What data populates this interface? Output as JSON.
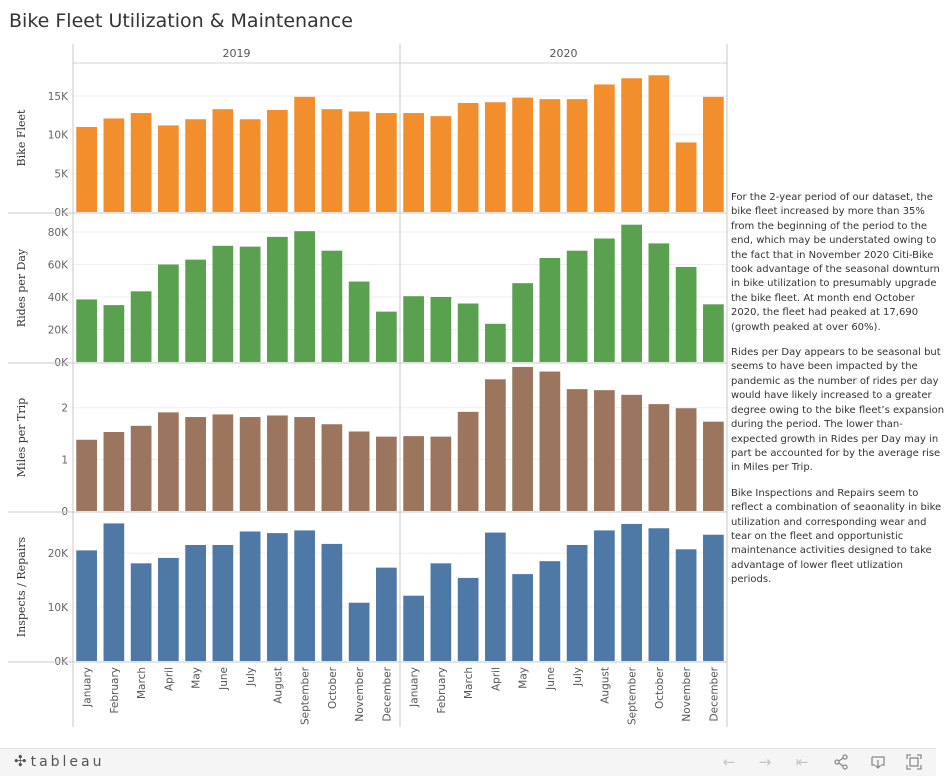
{
  "title": "Bike Fleet Utilization & Maintenance",
  "colors": {
    "fleet": "#f28e2b",
    "rides": "#59a14f",
    "miles": "#9c755f",
    "inspects": "#4e79a7"
  },
  "chart_data": {
    "type": "bar",
    "years": [
      "2019",
      "2020"
    ],
    "months": {
      "2019": [
        "January",
        "February",
        "March",
        "April",
        "May",
        "June",
        "July",
        "August",
        "September",
        "October",
        "November",
        "December"
      ],
      "2020": [
        "January",
        "February",
        "March",
        "April",
        "May",
        "June",
        "July",
        "August",
        "September",
        "October",
        "November",
        "December"
      ]
    },
    "panels": [
      {
        "key": "fleet",
        "ylabel": "Bike Fleet",
        "ylim": [
          0,
          18500
        ],
        "ticks": [
          0,
          5000,
          10000,
          15000
        ],
        "tick_labels": [
          "0K",
          "5K",
          "10K",
          "15K"
        ],
        "values": {
          "2019": [
            11000,
            12100,
            12800,
            11200,
            12000,
            13300,
            12000,
            13200,
            14900,
            13300,
            13000,
            12800
          ],
          "2020": [
            12800,
            12400,
            14100,
            14200,
            14800,
            14600,
            14600,
            16500,
            17300,
            17690,
            9000,
            14900
          ]
        }
      },
      {
        "key": "rides",
        "ylabel": "Rides per Day",
        "ylim": [
          0,
          88000
        ],
        "ticks": [
          0,
          20000,
          40000,
          60000,
          80000
        ],
        "tick_labels": [
          "0K",
          "20K",
          "40K",
          "60K",
          "80K"
        ],
        "values": {
          "2019": [
            38500,
            35000,
            43500,
            60000,
            63000,
            71500,
            71000,
            77000,
            80500,
            68500,
            49500,
            31000
          ],
          "2020": [
            40500,
            40000,
            36000,
            23500,
            48500,
            64000,
            68500,
            76000,
            84500,
            73000,
            58500,
            35500
          ]
        }
      },
      {
        "key": "miles",
        "ylabel": "Miles per Trip",
        "ylim": [
          0,
          2.75
        ],
        "ticks": [
          0,
          1,
          2
        ],
        "tick_labels": [
          "0",
          "1",
          "2"
        ],
        "values": {
          "2019": [
            1.38,
            1.53,
            1.65,
            1.91,
            1.82,
            1.87,
            1.82,
            1.85,
            1.82,
            1.68,
            1.54,
            1.44
          ],
          "2020": [
            1.45,
            1.44,
            1.92,
            2.55,
            2.79,
            2.7,
            2.36,
            2.34,
            2.25,
            2.07,
            1.99,
            1.73
          ]
        }
      },
      {
        "key": "inspects",
        "ylabel": "Inspects / Repairs",
        "ylim": [
          0,
          26500
        ],
        "ticks": [
          0,
          10000,
          20000
        ],
        "tick_labels": [
          "0K",
          "10K",
          "20K"
        ],
        "values": {
          "2019": [
            20500,
            25500,
            18100,
            19100,
            21500,
            21500,
            24000,
            23700,
            24200,
            21700,
            10800,
            17300
          ],
          "2020": [
            12100,
            18100,
            15400,
            23800,
            16100,
            18500,
            21500,
            24200,
            25400,
            24600,
            20700,
            23400
          ]
        }
      }
    ]
  },
  "notes": [
    "For the 2-year period of our dataset, the bike fleet increased by more than 35% from the beginning of the period to the end, which may be understated owing to the fact that in November 2020 Citi-Bike took advantage of the seasonal downturn in bike utilization to presumably upgrade the bike fleet. At month end October 2020, the fleet had peaked at 17,690 (growth peaked at over 60%).",
    "Rides per Day appears to be seasonal but seems to have been impacted by the pandemic as the number of rides per day would have likely increased to a greater degree owing to the bike fleet’s expansion during the period.  The lower than-expected growth in Rides per Day may in part be accounted for by the average rise in Miles per Trip.",
    "Bike Inspections and Repairs seem to reflect a combination of seaonality in bike utilization and corresponding wear and tear on the fleet and opportunistic maintenance activities designed to take advantage of lower fleet utlization periods."
  ],
  "footer": {
    "logo": "tableau",
    "icons": [
      "undo-icon",
      "redo-icon",
      "revert-icon",
      "share-icon",
      "download-icon",
      "fullscreen-icon"
    ]
  }
}
